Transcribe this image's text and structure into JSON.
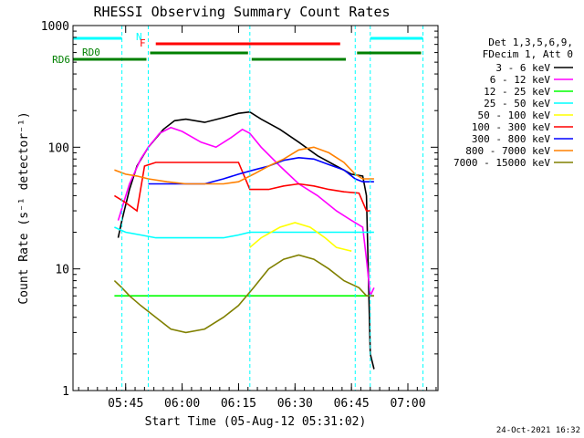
{
  "chart_data": {
    "type": "line",
    "title": "RHESSI Observing Summary Count Rates",
    "xlabel": "Start Time (05-Aug-12 05:31:02)",
    "ylabel": "Count Rate (s⁻¹ detector⁻¹)",
    "x_range_minutes": [
      0,
      97
    ],
    "x_ticks": [
      {
        "label": "05:45",
        "minute": 14
      },
      {
        "label": "06:00",
        "minute": 29
      },
      {
        "label": "06:15",
        "minute": 44
      },
      {
        "label": "06:30",
        "minute": 59
      },
      {
        "label": "06:45",
        "minute": 74
      },
      {
        "label": "07:00",
        "minute": 89
      }
    ],
    "ylim": [
      1,
      1000
    ],
    "yscale": "log",
    "y_ticks": [
      {
        "label": "1",
        "value": 1
      },
      {
        "label": "10",
        "value": 10
      },
      {
        "label": "100",
        "value": 100
      },
      {
        "label": "1000",
        "value": 1000
      }
    ],
    "legend_header": [
      "Det 1,3,5,6,9,",
      "FDecim 1, Att 0"
    ],
    "series": [
      {
        "name": "3 - 6 keV",
        "color": "#000000",
        "points": [
          [
            12,
            18
          ],
          [
            13,
            25
          ],
          [
            15,
            45
          ],
          [
            17,
            70
          ],
          [
            20,
            100
          ],
          [
            24,
            140
          ],
          [
            27,
            165
          ],
          [
            30,
            170
          ],
          [
            35,
            160
          ],
          [
            40,
            175
          ],
          [
            44,
            190
          ],
          [
            47,
            195
          ],
          [
            50,
            170
          ],
          [
            55,
            140
          ],
          [
            60,
            110
          ],
          [
            65,
            85
          ],
          [
            70,
            70
          ],
          [
            74,
            60
          ],
          [
            77,
            58
          ],
          [
            78,
            40
          ],
          [
            79,
            2
          ],
          [
            80,
            1.5
          ]
        ]
      },
      {
        "name": "6 - 12 keV",
        "color": "#ff00ff",
        "points": [
          [
            12,
            25
          ],
          [
            15,
            50
          ],
          [
            18,
            80
          ],
          [
            20,
            100
          ],
          [
            23,
            130
          ],
          [
            26,
            145
          ],
          [
            29,
            135
          ],
          [
            34,
            110
          ],
          [
            38,
            100
          ],
          [
            42,
            120
          ],
          [
            45,
            140
          ],
          [
            47,
            130
          ],
          [
            50,
            100
          ],
          [
            55,
            70
          ],
          [
            60,
            50
          ],
          [
            65,
            40
          ],
          [
            70,
            30
          ],
          [
            74,
            25
          ],
          [
            77,
            22
          ],
          [
            78,
            12
          ],
          [
            79,
            6
          ],
          [
            80,
            7
          ]
        ]
      },
      {
        "name": "12 - 25 keV",
        "color": "#00ff00",
        "points": [
          [
            11,
            6
          ],
          [
            15,
            6
          ],
          [
            20,
            6
          ],
          [
            25,
            6
          ],
          [
            30,
            6
          ],
          [
            35,
            6
          ],
          [
            40,
            6
          ],
          [
            44,
            6
          ],
          [
            47,
            6
          ],
          [
            50,
            6
          ],
          [
            55,
            6
          ],
          [
            60,
            6
          ],
          [
            65,
            6
          ],
          [
            70,
            6
          ],
          [
            74,
            6
          ],
          [
            78,
            6
          ],
          [
            80,
            6
          ]
        ]
      },
      {
        "name": "25 - 50 keV",
        "color": "#00ffff",
        "points": [
          [
            11,
            22
          ],
          [
            14,
            20
          ],
          [
            18,
            19
          ],
          [
            22,
            18
          ],
          [
            26,
            18
          ],
          [
            30,
            18
          ],
          [
            35,
            18
          ],
          [
            40,
            18
          ],
          [
            44,
            19
          ],
          [
            47,
            20
          ],
          [
            50,
            20
          ],
          [
            55,
            20
          ],
          [
            60,
            20
          ],
          [
            65,
            20
          ],
          [
            70,
            20
          ],
          [
            74,
            20
          ],
          [
            78,
            20
          ],
          [
            80,
            20
          ]
        ]
      },
      {
        "name": "50 - 100 keV",
        "color": "#ffff00",
        "points": [
          [
            47,
            15
          ],
          [
            50,
            18
          ],
          [
            55,
            22
          ],
          [
            59,
            24
          ],
          [
            63,
            22
          ],
          [
            67,
            18
          ],
          [
            70,
            15
          ],
          [
            74,
            14
          ]
        ]
      },
      {
        "name": "100 - 300 keV",
        "color": "#ff0000",
        "points": [
          [
            11,
            40
          ],
          [
            14,
            35
          ],
          [
            17,
            30
          ],
          [
            19,
            70
          ],
          [
            22,
            75
          ],
          [
            26,
            75
          ],
          [
            30,
            75
          ],
          [
            35,
            75
          ],
          [
            40,
            75
          ],
          [
            44,
            75
          ],
          [
            47,
            45
          ],
          [
            52,
            45
          ],
          [
            56,
            48
          ],
          [
            60,
            50
          ],
          [
            64,
            48
          ],
          [
            68,
            45
          ],
          [
            72,
            43
          ],
          [
            76,
            42
          ],
          [
            78,
            30
          ],
          [
            79,
            30
          ]
        ]
      },
      {
        "name": "300 - 800 keV",
        "color": "#0000ff",
        "points": [
          [
            20,
            50
          ],
          [
            25,
            50
          ],
          [
            30,
            50
          ],
          [
            35,
            50
          ],
          [
            40,
            55
          ],
          [
            44,
            60
          ],
          [
            48,
            65
          ],
          [
            52,
            70
          ],
          [
            56,
            78
          ],
          [
            60,
            82
          ],
          [
            64,
            80
          ],
          [
            68,
            72
          ],
          [
            72,
            65
          ],
          [
            75,
            55
          ],
          [
            77,
            52
          ],
          [
            80,
            52
          ]
        ]
      },
      {
        "name": "800 - 7000 keV",
        "color": "#ff8000",
        "points": [
          [
            11,
            65
          ],
          [
            14,
            60
          ],
          [
            17,
            58
          ],
          [
            20,
            55
          ],
          [
            25,
            52
          ],
          [
            30,
            50
          ],
          [
            35,
            50
          ],
          [
            40,
            50
          ],
          [
            44,
            52
          ],
          [
            48,
            60
          ],
          [
            52,
            70
          ],
          [
            56,
            80
          ],
          [
            60,
            95
          ],
          [
            64,
            100
          ],
          [
            68,
            90
          ],
          [
            72,
            75
          ],
          [
            75,
            60
          ],
          [
            77,
            55
          ],
          [
            80,
            55
          ]
        ]
      },
      {
        "name": "7000 - 15000 keV",
        "color": "#808000",
        "points": [
          [
            11,
            8
          ],
          [
            13,
            7
          ],
          [
            15,
            6
          ],
          [
            18,
            5
          ],
          [
            22,
            4
          ],
          [
            26,
            3.2
          ],
          [
            30,
            3
          ],
          [
            35,
            3.2
          ],
          [
            40,
            4
          ],
          [
            44,
            5
          ],
          [
            48,
            7
          ],
          [
            52,
            10
          ],
          [
            56,
            12
          ],
          [
            60,
            13
          ],
          [
            64,
            12
          ],
          [
            68,
            10
          ],
          [
            72,
            8
          ],
          [
            76,
            7
          ],
          [
            78,
            6
          ],
          [
            80,
            6
          ]
        ]
      }
    ],
    "annotations": {
      "N_label": "N",
      "F_label": "F",
      "RD0_label": "RD0",
      "RD6_label": "RD6",
      "vertical_lines_minutes": [
        13,
        20,
        47,
        75,
        79,
        93
      ],
      "flag_N_bars": [
        [
          0,
          13
        ],
        [
          79,
          93
        ]
      ],
      "flag_F_bar": [
        22,
        71
      ],
      "rd0_bars": [
        [
          0,
          20
        ],
        [
          20,
          47
        ],
        [
          47,
          73
        ],
        [
          75,
          93
        ]
      ]
    },
    "grid": false
  },
  "footer": {
    "timestamp": "24-Oct-2021 16:32"
  }
}
